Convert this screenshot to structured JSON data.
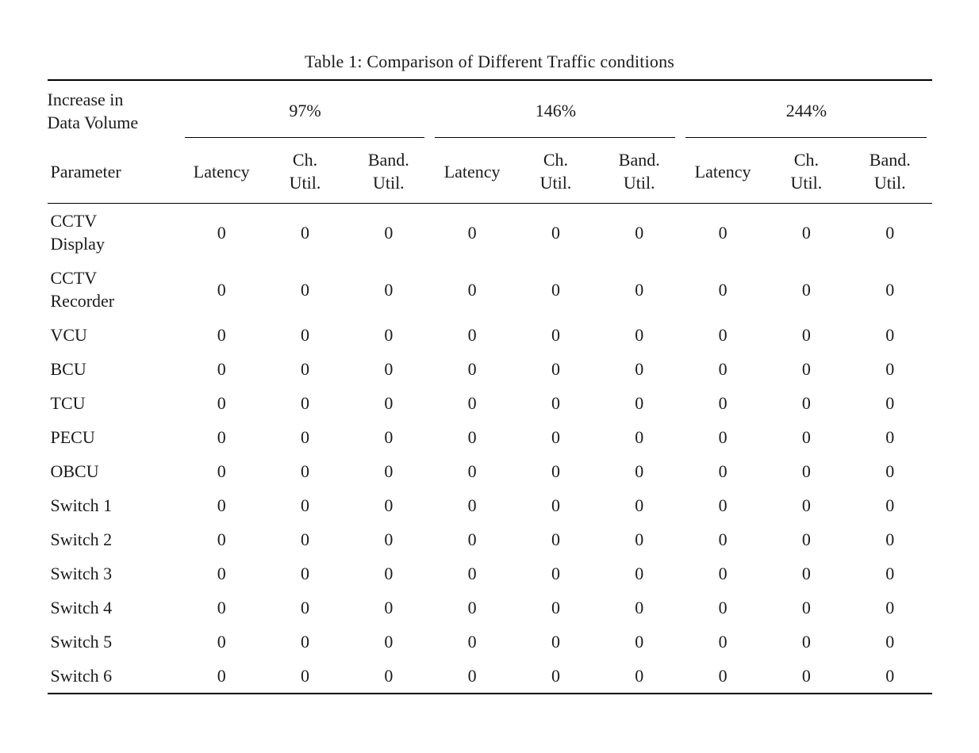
{
  "page": {
    "background": "#ffffff",
    "text_color": "#1b1b1b",
    "rule_color": "#000000"
  },
  "table": {
    "caption": "Table 1: Comparison of Different Traffic conditions",
    "header": {
      "row_group_label": "Increase in\nData Volume",
      "parameter_label": "Parameter",
      "groups": [
        {
          "label": "97%"
        },
        {
          "label": "146%"
        },
        {
          "label": "244%"
        }
      ],
      "subcolumns": [
        "Latency",
        "Ch.\nUtil.",
        "Band.\nUtil."
      ]
    },
    "rows": [
      {
        "label": "CCTV\nDisplay",
        "values": [
          "0",
          "0",
          "0",
          "0",
          "0",
          "0",
          "0",
          "0",
          "0"
        ]
      },
      {
        "label": "CCTV\nRecorder",
        "values": [
          "0",
          "0",
          "0",
          "0",
          "0",
          "0",
          "0",
          "0",
          "0"
        ]
      },
      {
        "label": "VCU",
        "values": [
          "0",
          "0",
          "0",
          "0",
          "0",
          "0",
          "0",
          "0",
          "0"
        ]
      },
      {
        "label": "BCU",
        "values": [
          "0",
          "0",
          "0",
          "0",
          "0",
          "0",
          "0",
          "0",
          "0"
        ]
      },
      {
        "label": "TCU",
        "values": [
          "0",
          "0",
          "0",
          "0",
          "0",
          "0",
          "0",
          "0",
          "0"
        ]
      },
      {
        "label": "PECU",
        "values": [
          "0",
          "0",
          "0",
          "0",
          "0",
          "0",
          "0",
          "0",
          "0"
        ]
      },
      {
        "label": "OBCU",
        "values": [
          "0",
          "0",
          "0",
          "0",
          "0",
          "0",
          "0",
          "0",
          "0"
        ]
      },
      {
        "label": "Switch 1",
        "values": [
          "0",
          "0",
          "0",
          "0",
          "0",
          "0",
          "0",
          "0",
          "0"
        ]
      },
      {
        "label": "Switch 2",
        "values": [
          "0",
          "0",
          "0",
          "0",
          "0",
          "0",
          "0",
          "0",
          "0"
        ]
      },
      {
        "label": "Switch 3",
        "values": [
          "0",
          "0",
          "0",
          "0",
          "0",
          "0",
          "0",
          "0",
          "0"
        ]
      },
      {
        "label": "Switch 4",
        "values": [
          "0",
          "0",
          "0",
          "0",
          "0",
          "0",
          "0",
          "0",
          "0"
        ]
      },
      {
        "label": "Switch 5",
        "values": [
          "0",
          "0",
          "0",
          "0",
          "0",
          "0",
          "0",
          "0",
          "0"
        ]
      },
      {
        "label": "Switch 6",
        "values": [
          "0",
          "0",
          "0",
          "0",
          "0",
          "0",
          "0",
          "0",
          "0"
        ]
      }
    ]
  }
}
